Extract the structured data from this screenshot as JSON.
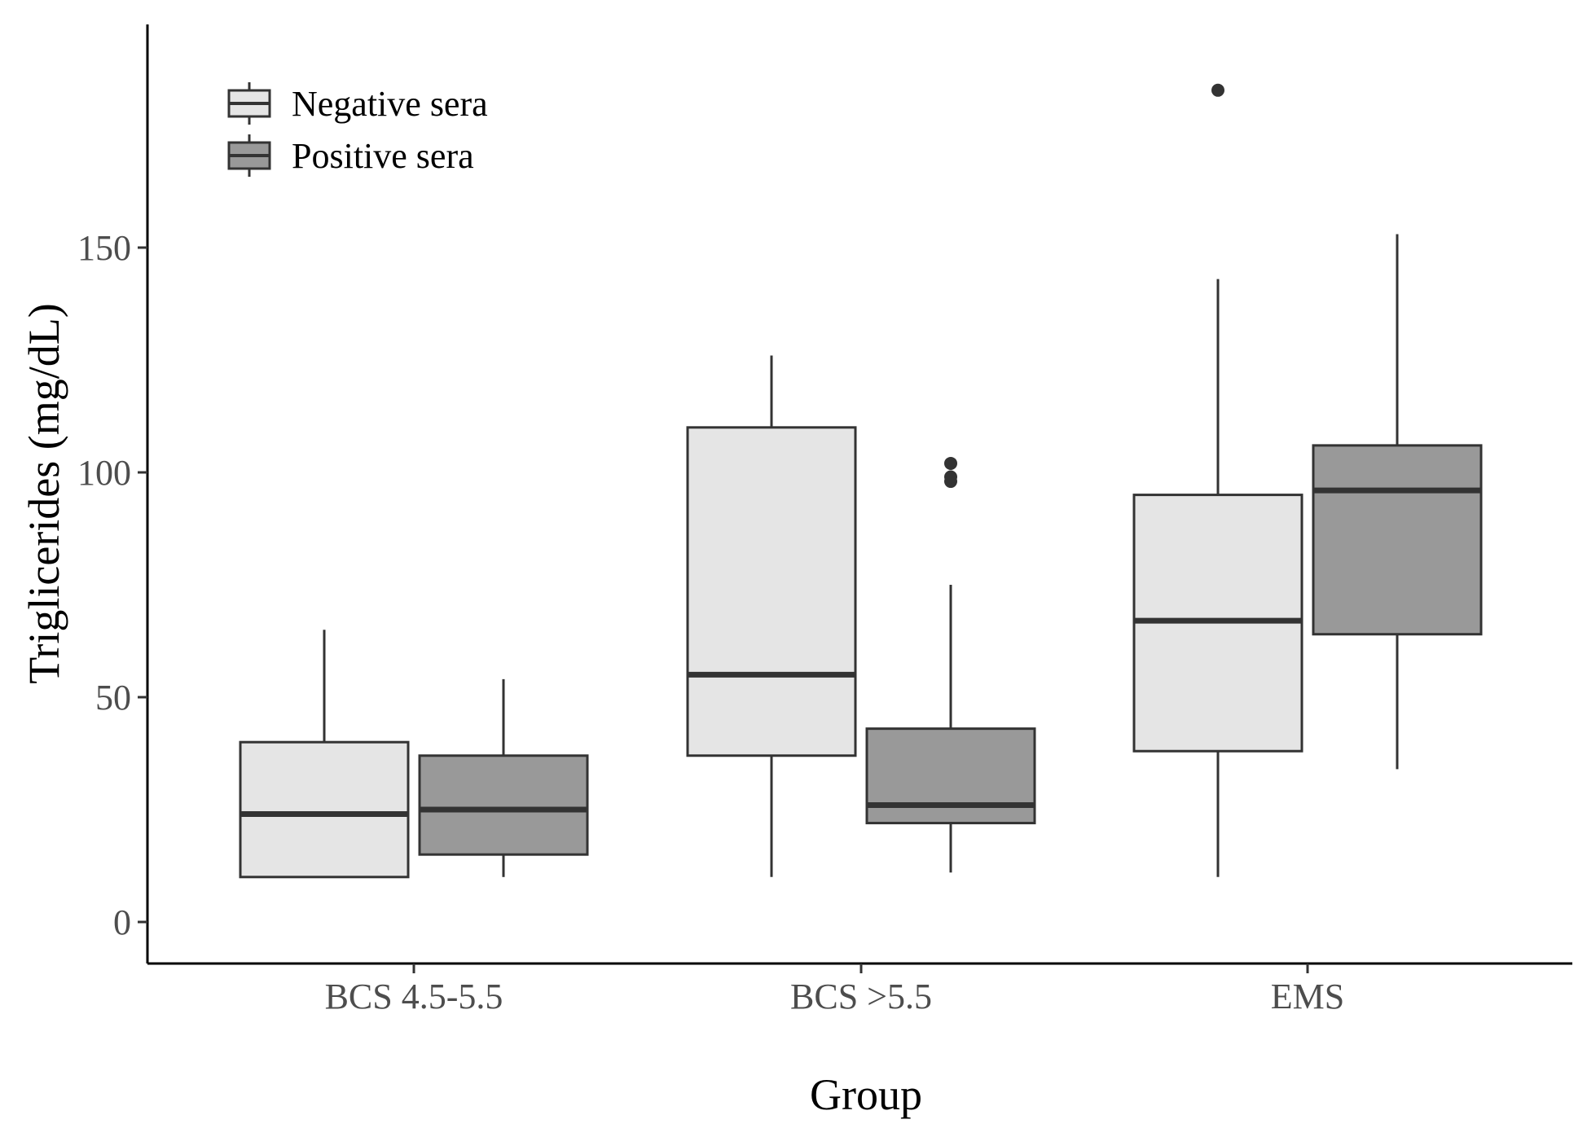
{
  "chart_data": {
    "type": "boxplot",
    "title": "",
    "xlabel": "Group",
    "ylabel": "Triglicerides (mg/dL)",
    "ylim": [
      -10,
      200
    ],
    "yticks": [
      0,
      50,
      100,
      150
    ],
    "categories": [
      "BCS 4.5-5.5",
      "BCS >5.5",
      "EMS"
    ],
    "legend_position": "top-left",
    "series": [
      {
        "name": "Negative sera",
        "color": "#e5e5e5",
        "boxes": [
          {
            "min": 10,
            "q1": 10,
            "median": 24,
            "q3": 40,
            "max": 65,
            "outliers": []
          },
          {
            "min": 10,
            "q1": 37,
            "median": 55,
            "q3": 110,
            "max": 126,
            "outliers": []
          },
          {
            "min": 10,
            "q1": 38,
            "median": 67,
            "q3": 95,
            "max": 143,
            "outliers": [
              185
            ]
          }
        ]
      },
      {
        "name": "Positive sera",
        "color": "#999999",
        "boxes": [
          {
            "min": 10,
            "q1": 15,
            "median": 25,
            "q3": 37,
            "max": 54,
            "outliers": []
          },
          {
            "min": 11,
            "q1": 22,
            "median": 26,
            "q3": 43,
            "max": 75,
            "outliers": [
              98,
              99,
              102
            ]
          },
          {
            "min": 34,
            "q1": 64,
            "median": 96,
            "q3": 106,
            "max": 153,
            "outliers": []
          }
        ]
      }
    ]
  }
}
